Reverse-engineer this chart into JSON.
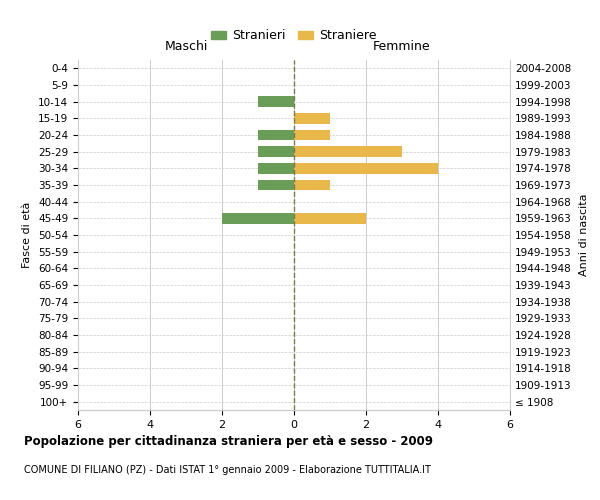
{
  "age_groups": [
    "100+",
    "95-99",
    "90-94",
    "85-89",
    "80-84",
    "75-79",
    "70-74",
    "65-69",
    "60-64",
    "55-59",
    "50-54",
    "45-49",
    "40-44",
    "35-39",
    "30-34",
    "25-29",
    "20-24",
    "15-19",
    "10-14",
    "5-9",
    "0-4"
  ],
  "birth_years": [
    "≤ 1908",
    "1909-1913",
    "1914-1918",
    "1919-1923",
    "1924-1928",
    "1929-1933",
    "1934-1938",
    "1939-1943",
    "1944-1948",
    "1949-1953",
    "1954-1958",
    "1959-1963",
    "1964-1968",
    "1969-1973",
    "1974-1978",
    "1979-1983",
    "1984-1988",
    "1989-1993",
    "1994-1998",
    "1999-2003",
    "2004-2008"
  ],
  "males": [
    0,
    0,
    0,
    0,
    0,
    0,
    0,
    0,
    0,
    0,
    0,
    2,
    0,
    1,
    1,
    1,
    1,
    0,
    1,
    0,
    0
  ],
  "females": [
    0,
    0,
    0,
    0,
    0,
    0,
    0,
    0,
    0,
    0,
    0,
    2,
    0,
    1,
    4,
    3,
    1,
    1,
    0,
    0,
    0
  ],
  "male_color": "#6a9e58",
  "female_color": "#e8b84b",
  "background_color": "#ffffff",
  "grid_color": "#cccccc",
  "center_line_color": "#7a7a50",
  "xlim": 6,
  "title": "Popolazione per cittadinanza straniera per età e sesso - 2009",
  "subtitle": "COMUNE DI FILIANO (PZ) - Dati ISTAT 1° gennaio 2009 - Elaborazione TUTTITALIA.IT",
  "xlabel_left": "Maschi",
  "xlabel_right": "Femmine",
  "ylabel_left": "Fasce di età",
  "ylabel_right": "Anni di nascita",
  "legend_male": "Stranieri",
  "legend_female": "Straniere"
}
